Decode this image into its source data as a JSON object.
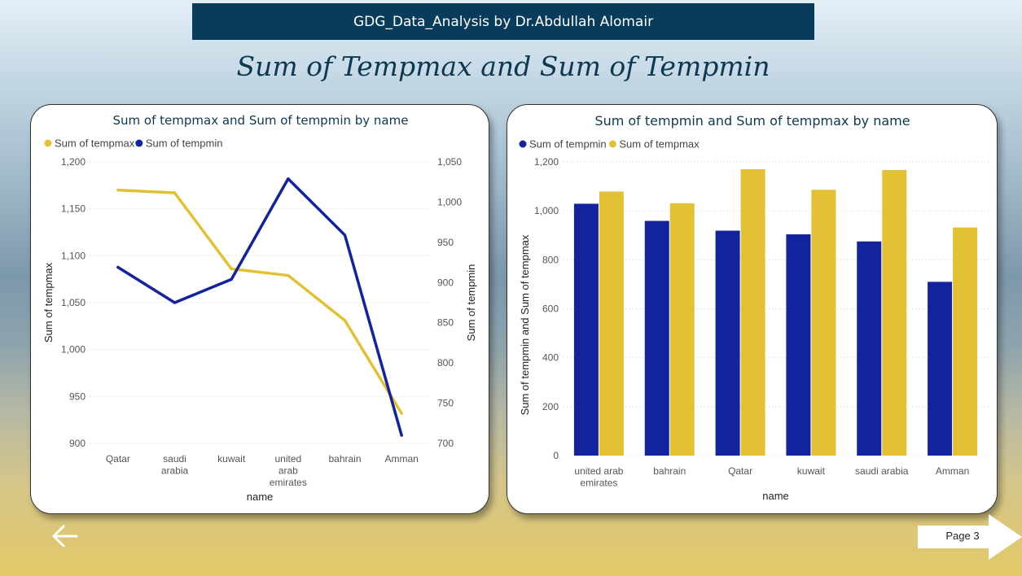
{
  "header": {
    "title": "GDG_Data_Analysis by Dr.Abdullah Alomair"
  },
  "page": {
    "title": "Sum of Tempmax and Sum of Tempmin"
  },
  "nav": {
    "back_icon": "arrow-left-icon",
    "page_label": "Page 3"
  },
  "colors": {
    "tempmax": "#e2c234",
    "tempmin": "#13239e",
    "header_bg": "#083c5a",
    "title": "#0c3852"
  },
  "chart_data": [
    {
      "type": "line",
      "title": "Sum of tempmax and Sum of tempmin by name",
      "legend": [
        "Sum of tempmax",
        "Sum of tempmin"
      ],
      "categories": [
        "Qatar",
        "saudi\narabia",
        "kuwait",
        "united\narab\nemirates",
        "bahrain",
        "Amman"
      ],
      "series": [
        {
          "name": "Sum of tempmax",
          "axis": "left",
          "values": [
            1170,
            1167,
            1086,
            1079,
            1031,
            932
          ]
        },
        {
          "name": "Sum of tempmin",
          "axis": "right",
          "values": [
            919,
            875,
            904,
            1029,
            959,
            710
          ]
        }
      ],
      "xlabel": "name",
      "ylabel_left": "Sum of tempmax",
      "ylabel_right": "Sum of tempmin",
      "ylim_left": [
        900,
        1200
      ],
      "yticks_left": [
        900,
        950,
        1000,
        1050,
        1100,
        1150,
        1200
      ],
      "ytick_labels_left": [
        "900",
        "950",
        "1,000",
        "1,050",
        "1,100",
        "1,150",
        "1,200"
      ],
      "ylim_right": [
        700,
        1050
      ],
      "yticks_right": [
        700,
        750,
        800,
        850,
        900,
        950,
        1000,
        1050
      ],
      "ytick_labels_right": [
        "700",
        "750",
        "800",
        "850",
        "900",
        "950",
        "1,000",
        "1,050"
      ]
    },
    {
      "type": "bar",
      "title": "Sum of tempmin and Sum of tempmax by name",
      "legend": [
        "Sum of tempmin",
        "Sum of tempmax"
      ],
      "categories": [
        "united arab\nemirates",
        "bahrain",
        "Qatar",
        "kuwait",
        "saudi arabia",
        "Amman"
      ],
      "series": [
        {
          "name": "Sum of tempmin",
          "values": [
            1029,
            959,
            919,
            904,
            875,
            710
          ]
        },
        {
          "name": "Sum of tempmax",
          "values": [
            1079,
            1031,
            1170,
            1086,
            1167,
            932
          ]
        }
      ],
      "xlabel": "name",
      "ylabel": "Sum of tempmin and Sum of tempmax",
      "ylim": [
        0,
        1200
      ],
      "yticks": [
        0,
        200,
        400,
        600,
        800,
        1000,
        1200
      ],
      "ytick_labels": [
        "0",
        "200",
        "400",
        "600",
        "800",
        "1,000",
        "1,200"
      ]
    }
  ]
}
